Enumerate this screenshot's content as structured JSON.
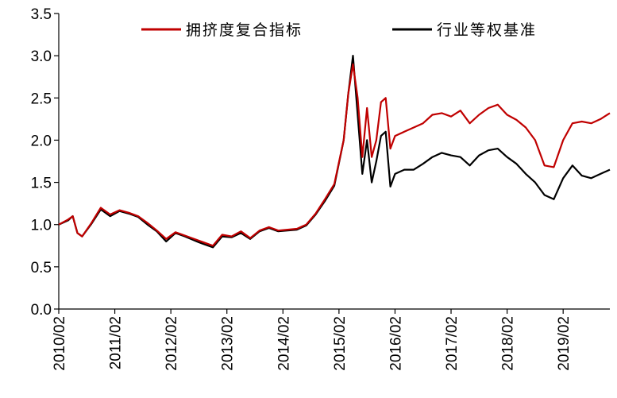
{
  "chart_data": {
    "type": "line",
    "title": "",
    "xlabel": "",
    "ylabel": "",
    "ylim": [
      0,
      3.5
    ],
    "y_ticks": [
      "0.0",
      "0.5",
      "1.0",
      "1.5",
      "2.0",
      "2.5",
      "3.0",
      "3.5"
    ],
    "x_tick_labels": [
      "2010/02",
      "2011/02",
      "2012/02",
      "2013/02",
      "2014/02",
      "2015/02",
      "2016/02",
      "2017/02",
      "2018/02",
      "2019/02"
    ],
    "x_range": [
      "2010/02",
      "2019/12"
    ],
    "grid": false,
    "legend_position": "top",
    "series": [
      {
        "name": "拥挤度复合指标",
        "color": "#c00000",
        "points": [
          [
            "2010/02",
            1.0
          ],
          [
            "2010/04",
            1.06
          ],
          [
            "2010/05",
            1.1
          ],
          [
            "2010/06",
            0.9
          ],
          [
            "2010/07",
            0.86
          ],
          [
            "2010/09",
            1.02
          ],
          [
            "2010/11",
            1.2
          ],
          [
            "2011/01",
            1.12
          ],
          [
            "2011/03",
            1.17
          ],
          [
            "2011/05",
            1.14
          ],
          [
            "2011/07",
            1.1
          ],
          [
            "2011/09",
            1.02
          ],
          [
            "2011/11",
            0.93
          ],
          [
            "2012/01",
            0.83
          ],
          [
            "2012/03",
            0.91
          ],
          [
            "2012/05",
            0.87
          ],
          [
            "2012/08",
            0.81
          ],
          [
            "2012/11",
            0.75
          ],
          [
            "2013/01",
            0.88
          ],
          [
            "2013/03",
            0.86
          ],
          [
            "2013/05",
            0.92
          ],
          [
            "2013/07",
            0.84
          ],
          [
            "2013/09",
            0.93
          ],
          [
            "2013/11",
            0.97
          ],
          [
            "2014/01",
            0.93
          ],
          [
            "2014/03",
            0.94
          ],
          [
            "2014/05",
            0.95
          ],
          [
            "2014/07",
            1.0
          ],
          [
            "2014/09",
            1.13
          ],
          [
            "2014/11",
            1.3
          ],
          [
            "2015/01",
            1.48
          ],
          [
            "2015/03",
            2.0
          ],
          [
            "2015/04",
            2.55
          ],
          [
            "2015/05",
            2.9
          ],
          [
            "2015/06",
            2.5
          ],
          [
            "2015/07",
            1.8
          ],
          [
            "2015/08",
            2.38
          ],
          [
            "2015/09",
            1.8
          ],
          [
            "2015/10",
            2.0
          ],
          [
            "2015/11",
            2.45
          ],
          [
            "2015/12",
            2.5
          ],
          [
            "2016/01",
            1.9
          ],
          [
            "2016/02",
            2.05
          ],
          [
            "2016/04",
            2.1
          ],
          [
            "2016/06",
            2.15
          ],
          [
            "2016/08",
            2.2
          ],
          [
            "2016/10",
            2.3
          ],
          [
            "2016/12",
            2.32
          ],
          [
            "2017/02",
            2.28
          ],
          [
            "2017/04",
            2.35
          ],
          [
            "2017/06",
            2.2
          ],
          [
            "2017/08",
            2.3
          ],
          [
            "2017/10",
            2.38
          ],
          [
            "2017/12",
            2.42
          ],
          [
            "2018/02",
            2.3
          ],
          [
            "2018/04",
            2.24
          ],
          [
            "2018/06",
            2.15
          ],
          [
            "2018/08",
            2.0
          ],
          [
            "2018/10",
            1.7
          ],
          [
            "2018/12",
            1.68
          ],
          [
            "2019/02",
            2.0
          ],
          [
            "2019/04",
            2.2
          ],
          [
            "2019/06",
            2.22
          ],
          [
            "2019/08",
            2.2
          ],
          [
            "2019/10",
            2.25
          ],
          [
            "2019/12",
            2.32
          ]
        ]
      },
      {
        "name": "行业等权基准",
        "color": "#000000",
        "points": [
          [
            "2010/02",
            1.0
          ],
          [
            "2010/04",
            1.05
          ],
          [
            "2010/05",
            1.1
          ],
          [
            "2010/06",
            0.9
          ],
          [
            "2010/07",
            0.86
          ],
          [
            "2010/09",
            1.01
          ],
          [
            "2010/11",
            1.18
          ],
          [
            "2011/01",
            1.1
          ],
          [
            "2011/03",
            1.16
          ],
          [
            "2011/05",
            1.13
          ],
          [
            "2011/07",
            1.09
          ],
          [
            "2011/09",
            1.0
          ],
          [
            "2011/11",
            0.92
          ],
          [
            "2012/01",
            0.8
          ],
          [
            "2012/03",
            0.9
          ],
          [
            "2012/05",
            0.86
          ],
          [
            "2012/08",
            0.79
          ],
          [
            "2012/11",
            0.73
          ],
          [
            "2013/01",
            0.86
          ],
          [
            "2013/03",
            0.85
          ],
          [
            "2013/05",
            0.9
          ],
          [
            "2013/07",
            0.83
          ],
          [
            "2013/09",
            0.92
          ],
          [
            "2013/11",
            0.96
          ],
          [
            "2014/01",
            0.92
          ],
          [
            "2014/03",
            0.93
          ],
          [
            "2014/05",
            0.94
          ],
          [
            "2014/07",
            0.99
          ],
          [
            "2014/09",
            1.12
          ],
          [
            "2014/11",
            1.28
          ],
          [
            "2015/01",
            1.46
          ],
          [
            "2015/03",
            2.0
          ],
          [
            "2015/04",
            2.55
          ],
          [
            "2015/05",
            3.0
          ],
          [
            "2015/06",
            2.3
          ],
          [
            "2015/07",
            1.6
          ],
          [
            "2015/08",
            2.0
          ],
          [
            "2015/09",
            1.5
          ],
          [
            "2015/10",
            1.75
          ],
          [
            "2015/11",
            2.05
          ],
          [
            "2015/12",
            2.1
          ],
          [
            "2016/01",
            1.45
          ],
          [
            "2016/02",
            1.6
          ],
          [
            "2016/04",
            1.65
          ],
          [
            "2016/06",
            1.65
          ],
          [
            "2016/08",
            1.72
          ],
          [
            "2016/10",
            1.8
          ],
          [
            "2016/12",
            1.85
          ],
          [
            "2017/02",
            1.82
          ],
          [
            "2017/04",
            1.8
          ],
          [
            "2017/06",
            1.7
          ],
          [
            "2017/08",
            1.82
          ],
          [
            "2017/10",
            1.88
          ],
          [
            "2017/12",
            1.9
          ],
          [
            "2018/02",
            1.8
          ],
          [
            "2018/04",
            1.72
          ],
          [
            "2018/06",
            1.6
          ],
          [
            "2018/08",
            1.5
          ],
          [
            "2018/10",
            1.35
          ],
          [
            "2018/12",
            1.3
          ],
          [
            "2019/02",
            1.55
          ],
          [
            "2019/04",
            1.7
          ],
          [
            "2019/06",
            1.58
          ],
          [
            "2019/08",
            1.55
          ],
          [
            "2019/10",
            1.6
          ],
          [
            "2019/12",
            1.65
          ]
        ]
      }
    ]
  }
}
